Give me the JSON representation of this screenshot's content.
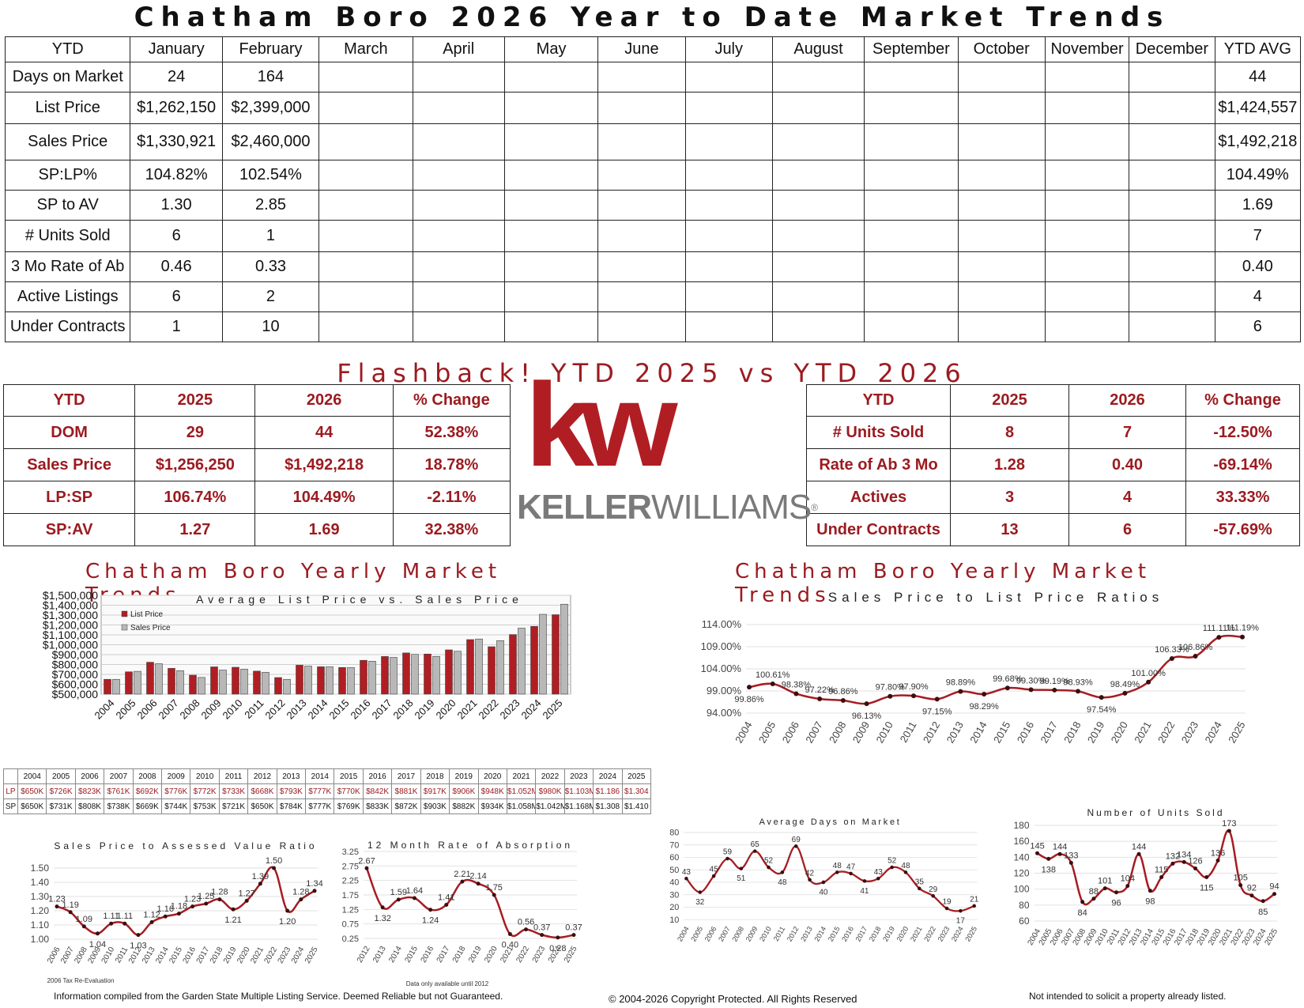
{
  "title": "Chatham Boro 2026 Year to Date Market Trends",
  "main_table": {
    "headers": [
      "YTD",
      "January",
      "February",
      "March",
      "April",
      "May",
      "June",
      "July",
      "August",
      "September",
      "October",
      "November",
      "December",
      "YTD AVG"
    ],
    "rows": [
      [
        "Days on Market",
        "24",
        "164",
        "",
        "",
        "",
        "",
        "",
        "",
        "",
        "",
        "",
        "",
        "44"
      ],
      [
        "List Price",
        "$1,262,150",
        "$2,399,000",
        "",
        "",
        "",
        "",
        "",
        "",
        "",
        "",
        "",
        "",
        "$1,424,557"
      ],
      [
        "Sales Price",
        "$1,330,921",
        "$2,460,000",
        "",
        "",
        "",
        "",
        "",
        "",
        "",
        "",
        "",
        "",
        "$1,492,218"
      ],
      [
        "SP:LP%",
        "104.82%",
        "102.54%",
        "",
        "",
        "",
        "",
        "",
        "",
        "",
        "",
        "",
        "",
        "104.49%"
      ],
      [
        "SP to AV",
        "1.30",
        "2.85",
        "",
        "",
        "",
        "",
        "",
        "",
        "",
        "",
        "",
        "",
        "1.69"
      ],
      [
        "# Units Sold",
        "6",
        "1",
        "",
        "",
        "",
        "",
        "",
        "",
        "",
        "",
        "",
        "",
        "7"
      ],
      [
        "3 Mo Rate of Ab",
        "0.46",
        "0.33",
        "",
        "",
        "",
        "",
        "",
        "",
        "",
        "",
        "",
        "",
        "0.40"
      ],
      [
        "Active Listings",
        "6",
        "2",
        "",
        "",
        "",
        "",
        "",
        "",
        "",
        "",
        "",
        "",
        "4"
      ],
      [
        "Under Contracts",
        "1",
        "10",
        "",
        "",
        "",
        "",
        "",
        "",
        "",
        "",
        "",
        "",
        "6"
      ]
    ]
  },
  "flashback_title": "Flashback!  YTD 2025 vs YTD 2026",
  "compare_left": {
    "headers": [
      "YTD",
      "2025",
      "2026",
      "% Change"
    ],
    "rows": [
      [
        "DOM",
        "29",
        "44",
        "52.38%"
      ],
      [
        "Sales Price",
        "$1,256,250",
        "$1,492,218",
        "18.78%"
      ],
      [
        "LP:SP",
        "106.74%",
        "104.49%",
        "-2.11%"
      ],
      [
        "SP:AV",
        "1.27",
        "1.69",
        "32.38%"
      ]
    ]
  },
  "compare_right": {
    "headers": [
      "YTD",
      "2025",
      "2026",
      "% Change"
    ],
    "rows": [
      [
        "# Units Sold",
        "8",
        "7",
        "-12.50%"
      ],
      [
        "Rate of Ab 3 Mo",
        "1.28",
        "0.40",
        "-69.14%"
      ],
      [
        "Actives",
        "3",
        "4",
        "33.33%"
      ],
      [
        "Under Contracts",
        "13",
        "6",
        "-57.69%"
      ]
    ]
  },
  "logo": {
    "mark": "kw",
    "wordmark_a": "KELLER",
    "wordmark_b": "WILLIAMS",
    "reg": "®",
    "brand_color": "#b01e24",
    "gray": "#7a7a7a"
  },
  "section_left_title": "Chatham Boro Yearly Market Trends",
  "section_right_title": "Chatham Boro Yearly Market Trends",
  "mini_table": {
    "years": [
      "2004",
      "2005",
      "2006",
      "2007",
      "2008",
      "2009",
      "2010",
      "2011",
      "2012",
      "2013",
      "2014",
      "2015",
      "2016",
      "2017",
      "2018",
      "2019",
      "2020",
      "2021",
      "2022",
      "2023",
      "2024",
      "2025"
    ],
    "lp_label": "LP",
    "sp_label": "SP",
    "lp": [
      "$650K",
      "$726K",
      "$823K",
      "$761K",
      "$692K",
      "$776K",
      "$772K",
      "$733K",
      "$668K",
      "$793K",
      "$777K",
      "$770K",
      "$842K",
      "$881K",
      "$917K",
      "$906K",
      "$948K",
      "$1.052M",
      "$980K",
      "$1.103M",
      "$1.186",
      "$1.304"
    ],
    "sp": [
      "$650K",
      "$731K",
      "$808K",
      "$738K",
      "$669K",
      "$744K",
      "$753K",
      "$721K",
      "$650K",
      "$784K",
      "$777K",
      "$769K",
      "$833K",
      "$872K",
      "$903K",
      "$882K",
      "$934K",
      "$1.058M",
      "$1.042M",
      "$1.168M",
      "$1.308",
      "$1.410"
    ]
  },
  "footer": {
    "left": "Information compiled from the Garden State Multiple Listing Service.  Deemed Reliable but not Guaranteed.",
    "center": "© 2004-2026 Copyright Protected.  All Rights Reserved",
    "right": "Not intended to solicit a property already listed."
  },
  "chart_data": [
    {
      "id": "lp-vs-sp",
      "type": "bar",
      "title": "Average List Price vs. Sales Price",
      "categories": [
        "2004",
        "2005",
        "2006",
        "2007",
        "2008",
        "2009",
        "2010",
        "2011",
        "2012",
        "2013",
        "2014",
        "2015",
        "2016",
        "2017",
        "2018",
        "2019",
        "2020",
        "2021",
        "2022",
        "2023",
        "2024",
        "2025"
      ],
      "series": [
        {
          "name": "List Price",
          "color": "#b01e24",
          "values": [
            650000,
            726000,
            823000,
            761000,
            692000,
            776000,
            772000,
            733000,
            668000,
            793000,
            777000,
            770000,
            842000,
            881000,
            917000,
            906000,
            948000,
            1052000,
            980000,
            1103000,
            1186000,
            1304000
          ]
        },
        {
          "name": "Sales Price",
          "color": "#b8b8b8",
          "values": [
            650000,
            731000,
            808000,
            738000,
            669000,
            744000,
            753000,
            721000,
            650000,
            784000,
            777000,
            769000,
            833000,
            872000,
            903000,
            882000,
            934000,
            1058000,
            1042000,
            1168000,
            1308000,
            1410000
          ]
        }
      ],
      "yticks": [
        "$500,000",
        "$600,000",
        "$700,000",
        "$800,000",
        "$900,000",
        "$1,000,000",
        "$1,100,000",
        "$1,200,000",
        "$1,300,000",
        "$1,400,000",
        "$1,500,000"
      ],
      "ylim": [
        500000,
        1500000
      ],
      "legend": "top-left"
    },
    {
      "id": "sp-lp-ratio",
      "type": "line",
      "title": "Sales Price to List Price Ratios",
      "x": [
        "2004",
        "2005",
        "2006",
        "2007",
        "2008",
        "2009",
        "2010",
        "2011",
        "2012",
        "2013",
        "2014",
        "2015",
        "2016",
        "2017",
        "2018",
        "2019",
        "2020",
        "2021",
        "2022",
        "2023",
        "2024",
        "2025"
      ],
      "values": [
        99.86,
        100.61,
        98.38,
        97.22,
        96.86,
        96.13,
        97.8,
        97.9,
        97.15,
        98.89,
        98.29,
        99.68,
        99.3,
        99.19,
        98.93,
        97.54,
        98.49,
        101.0,
        106.33,
        106.86,
        111.11,
        111.19
      ],
      "labels": [
        "99.86%",
        "100.61%",
        "98.38%",
        "97.22%",
        "96.86%",
        "96.13%",
        "97.80%",
        "97.90%",
        "97.15%",
        "98.89%",
        "98.29%",
        "99.68%",
        "99.30%",
        "99.19%",
        "98.93%",
        "97.54%",
        "98.49%",
        "101.00%",
        "106.33%",
        "106.86%",
        "111.11%",
        "111.19%"
      ],
      "yticks": [
        "94.00%",
        "99.00%",
        "104.00%",
        "109.00%",
        "114.00%"
      ],
      "ylim": [
        94,
        114
      ]
    },
    {
      "id": "sp-av",
      "type": "line",
      "title": "Sales Price to Assessed Value Ratio",
      "x": [
        "2006",
        "2007",
        "2008",
        "2009",
        "2010",
        "2011",
        "2012",
        "2013",
        "2014",
        "2015",
        "2016",
        "2017",
        "2018",
        "2019",
        "2020",
        "2021",
        "2022",
        "2023",
        "2024",
        "2025"
      ],
      "values": [
        1.23,
        1.19,
        1.09,
        1.04,
        1.11,
        1.11,
        1.03,
        1.12,
        1.16,
        1.18,
        1.23,
        1.25,
        1.28,
        1.21,
        1.27,
        1.39,
        1.5,
        1.2,
        1.28,
        1.34
      ],
      "labels": [
        "1.23",
        "1.19",
        "1.09",
        "1.04",
        "1.11",
        "1.11",
        "1.03",
        "1.12",
        "1.16",
        "1.18",
        "1.23",
        "1.25",
        "1.28",
        "1.21",
        "1.27",
        "1.39",
        "1.50",
        "1.20",
        "1.28",
        "1.34"
      ],
      "yticks": [
        "1.00",
        "1.10",
        "1.20",
        "1.30",
        "1.40",
        "1.50"
      ],
      "ylim": [
        1.0,
        1.5
      ],
      "note": "2006 Tax Re-Evaluation"
    },
    {
      "id": "absorption",
      "type": "line",
      "title": "12 Month Rate of Absorption",
      "x": [
        "2012",
        "2013",
        "2014",
        "2015",
        "2016",
        "2017",
        "2018",
        "2019",
        "2020",
        "2021",
        "2022",
        "2023",
        "2024",
        "2025"
      ],
      "values": [
        2.67,
        1.32,
        1.59,
        1.64,
        1.24,
        1.41,
        2.21,
        2.14,
        1.75,
        0.4,
        0.56,
        0.37,
        0.28,
        0.37
      ],
      "labels": [
        "2.67",
        "1.32",
        "1.59",
        "1.64",
        "1.24",
        "1.41",
        "2.21",
        "2.14",
        "1.75",
        "0.40",
        "0.56",
        "0.37",
        "0.28",
        "0.37"
      ],
      "yticks": [
        "0.25",
        "0.75",
        "1.25",
        "1.75",
        "2.25",
        "2.75",
        "3.25"
      ],
      "ylim": [
        0.25,
        3.25
      ],
      "note": "Data only available until 2012"
    },
    {
      "id": "dom",
      "type": "line",
      "title": "Average Days on Market",
      "x": [
        "2004",
        "2005",
        "2006",
        "2007",
        "2008",
        "2009",
        "2010",
        "2011",
        "2012",
        "2013",
        "2014",
        "2015",
        "2016",
        "2017",
        "2018",
        "2019",
        "2020",
        "2021",
        "2022",
        "2023",
        "2024",
        "2025"
      ],
      "values": [
        43,
        32,
        45,
        59,
        51,
        65,
        52,
        48,
        69,
        42,
        40,
        48,
        47,
        41,
        43,
        52,
        48,
        35,
        29,
        19,
        17,
        21
      ],
      "labels": [
        "43",
        "32",
        "45",
        "59",
        "51",
        "65",
        "52",
        "48",
        "69",
        "42",
        "40",
        "48",
        "47",
        "41",
        "43",
        "52",
        "48",
        "35",
        "29",
        "19",
        "17",
        "21"
      ],
      "yticks": [
        "10",
        "20",
        "30",
        "40",
        "50",
        "60",
        "70",
        "80"
      ],
      "ylim": [
        10,
        80
      ]
    },
    {
      "id": "units",
      "type": "line",
      "title": "Number of Units Sold",
      "x": [
        "2004",
        "2005",
        "2006",
        "2007",
        "2008",
        "2009",
        "2010",
        "2011",
        "2012",
        "2013",
        "2014",
        "2015",
        "2016",
        "2017",
        "2018",
        "2019",
        "2020",
        "2021",
        "2022",
        "2023",
        "2024",
        "2025"
      ],
      "values": [
        145,
        138,
        144,
        133,
        84,
        88,
        101,
        96,
        104,
        144,
        98,
        115,
        132,
        134,
        126,
        115,
        136,
        173,
        105,
        92,
        85,
        94
      ],
      "labels": [
        "145",
        "138",
        "144",
        "133",
        "84",
        "88",
        "101",
        "96",
        "104",
        "144",
        "98",
        "115",
        "132",
        "134",
        "126",
        "115",
        "136",
        "173",
        "105",
        "92",
        "85",
        "94"
      ],
      "yticks": [
        "60",
        "80",
        "100",
        "120",
        "140",
        "160",
        "180"
      ],
      "ylim": [
        60,
        180
      ]
    }
  ]
}
